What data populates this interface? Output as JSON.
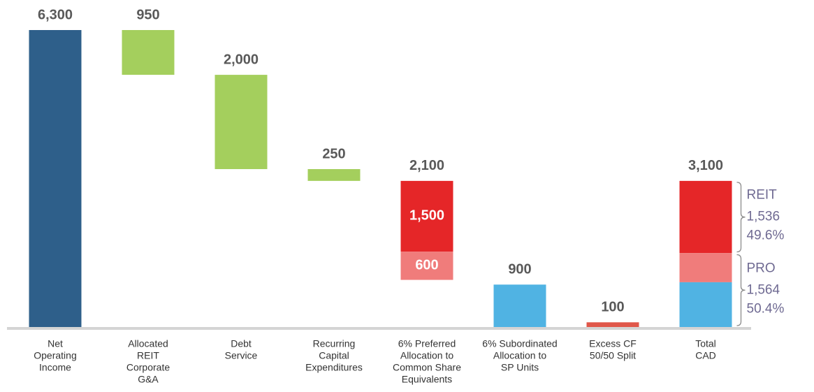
{
  "chart_data": {
    "type": "waterfall",
    "ylim": [
      0,
      6300
    ],
    "bars": [
      {
        "category": [
          "Net",
          "Operating",
          "Income"
        ],
        "kind": "total",
        "value": 6300,
        "value_label": "6,300",
        "color": "#2e5f8a"
      },
      {
        "category": [
          "Allocated",
          "REIT",
          "Corporate",
          "G&A"
        ],
        "kind": "step",
        "value": 950,
        "color": "#a4cf5d"
      },
      {
        "category": [
          "Debt",
          "Service"
        ],
        "kind": "step",
        "value": 2000,
        "value_label": "2,000",
        "color": "#a4cf5d"
      },
      {
        "category": [
          "Recurring",
          "Capital",
          "Expenditures"
        ],
        "kind": "step",
        "value": 250,
        "color": "#a4cf5d"
      },
      {
        "category": [
          "6% Preferred",
          "Allocation to",
          "Common Share",
          "Equivalents"
        ],
        "kind": "step",
        "value": 2100,
        "value_label": "2,100",
        "segments": [
          {
            "value": 1500,
            "label": "1,500",
            "color": "#e52628"
          },
          {
            "value": 600,
            "label": "600",
            "color": "#f07c7b"
          }
        ]
      },
      {
        "category": [
          "6% Subordinated",
          "Allocation to",
          "SP Units"
        ],
        "kind": "total",
        "value": 900,
        "color": "#50b3e3"
      },
      {
        "category": [
          "Excess CF",
          "50/50 Split"
        ],
        "kind": "total",
        "value": 100,
        "color": "#e0574a"
      },
      {
        "category": [
          "Total",
          "CAD"
        ],
        "kind": "total",
        "value": 3100,
        "value_label": "3,100",
        "segments": [
          {
            "value": 1530,
            "color": "#e52628"
          },
          {
            "value": 620,
            "color": "#f07c7b"
          },
          {
            "value": 950,
            "color": "#50b3e3"
          }
        ]
      }
    ],
    "annotations": [
      {
        "label": "REIT",
        "value": 1536,
        "value_label": "1,536",
        "share": 49.6,
        "share_label": "49.6%"
      },
      {
        "label": "PRO",
        "value": 1564,
        "value_label": "1,564",
        "share": 50.4,
        "share_label": "50.4%"
      }
    ]
  }
}
